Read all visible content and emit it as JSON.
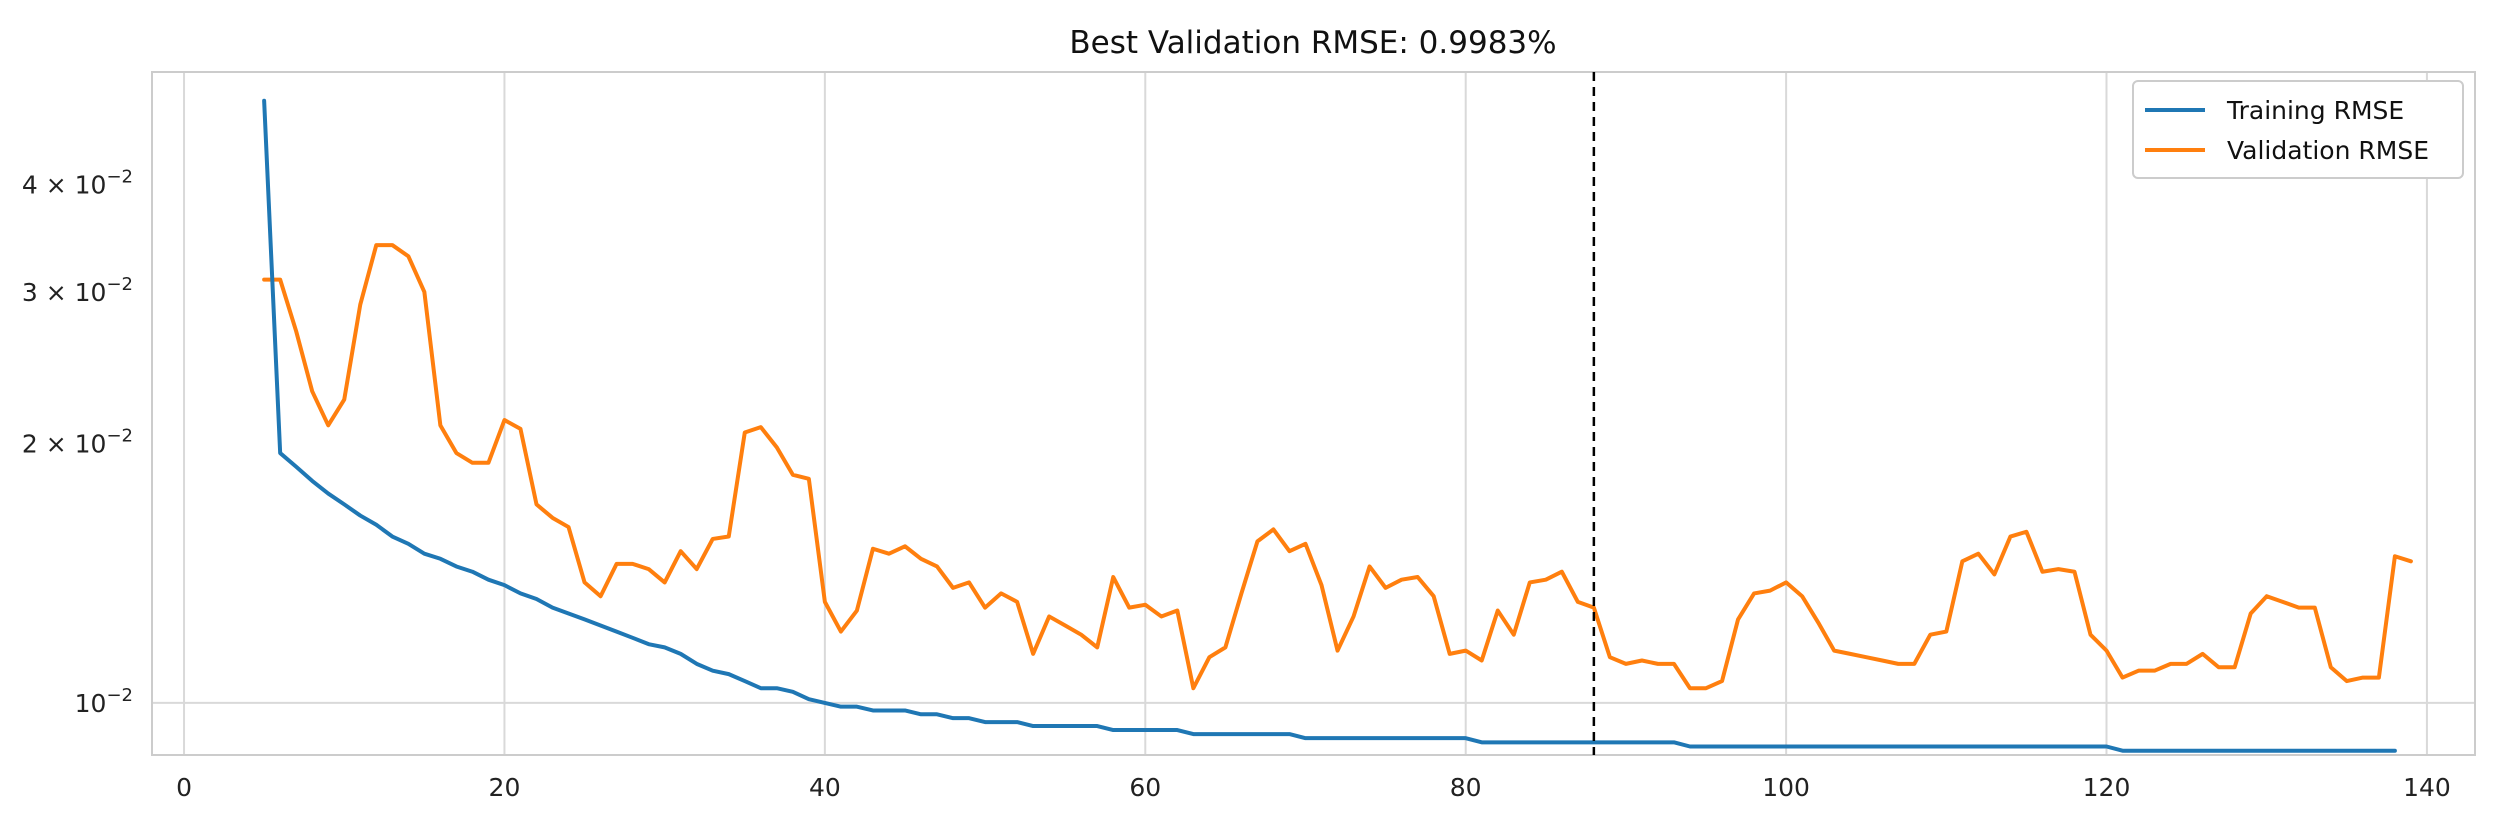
{
  "chart_data": {
    "type": "line",
    "title": "Best Validation RMSE: 0.9983%",
    "xlabel": "",
    "ylabel": "",
    "y_scale": "log",
    "xlim": [
      -2,
      143
    ],
    "ylim": [
      0.0087,
      0.054
    ],
    "x_ticks": [
      {
        "value": 0,
        "label": "0"
      },
      {
        "value": 20,
        "label": "20"
      },
      {
        "value": 40,
        "label": "40"
      },
      {
        "value": 60,
        "label": "60"
      },
      {
        "value": 80,
        "label": "80"
      },
      {
        "value": 100,
        "label": "100"
      },
      {
        "value": 120,
        "label": "120"
      },
      {
        "value": 140,
        "label": "140"
      }
    ],
    "y_ticks": [
      {
        "value": 0.01,
        "base": "10",
        "exp": "−2",
        "prefix": ""
      },
      {
        "value": 0.02,
        "base": "10",
        "exp": "−2",
        "prefix": "2 × "
      },
      {
        "value": 0.03,
        "base": "10",
        "exp": "−2",
        "prefix": "3 × "
      },
      {
        "value": 0.04,
        "base": "10",
        "exp": "−2",
        "prefix": "4 × "
      }
    ],
    "grid": true,
    "legend_position": "top-right",
    "vline": {
      "x": 88,
      "style": "dashed",
      "color": "#000000"
    },
    "colors": {
      "training": "#1f77b4",
      "validation": "#ff7f0e"
    },
    "series": [
      {
        "name": "Training RMSE",
        "x_start": 5,
        "values": [
          0.05,
          0.0195,
          0.0188,
          0.0181,
          0.0175,
          0.017,
          0.0165,
          0.0161,
          0.0156,
          0.0153,
          0.0149,
          0.0147,
          0.0144,
          0.0142,
          0.0139,
          0.0137,
          0.0134,
          0.0132,
          0.0129,
          0.0127,
          0.0125,
          0.0123,
          0.0121,
          0.0119,
          0.0117,
          0.0116,
          0.0114,
          0.0111,
          0.0109,
          0.0108,
          0.0106,
          0.0104,
          0.0104,
          0.0103,
          0.0101,
          0.01,
          0.0099,
          0.0099,
          0.0098,
          0.0098,
          0.0098,
          0.0097,
          0.0097,
          0.0096,
          0.0096,
          0.0095,
          0.0095,
          0.0095,
          0.0094,
          0.0094,
          0.0094,
          0.0094,
          0.0094,
          0.0093,
          0.0093,
          0.0093,
          0.0093,
          0.0093,
          0.0092,
          0.0092,
          0.0092,
          0.0092,
          0.0092,
          0.0092,
          0.0092,
          0.0091,
          0.0091,
          0.0091,
          0.0091,
          0.0091,
          0.0091,
          0.0091,
          0.0091,
          0.0091,
          0.0091,
          0.0091,
          0.009,
          0.009,
          0.009,
          0.009,
          0.009,
          0.009,
          0.009,
          0.009,
          0.009,
          0.009,
          0.009,
          0.009,
          0.009,
          0.0089,
          0.0089,
          0.0089,
          0.0089,
          0.0089,
          0.0089,
          0.0089,
          0.0089,
          0.0089,
          0.0089,
          0.0089,
          0.0089,
          0.0089,
          0.0089,
          0.0089,
          0.0089,
          0.0089,
          0.0089,
          0.0089,
          0.0089,
          0.0089,
          0.0089,
          0.0089,
          0.0089,
          0.0089,
          0.0089,
          0.0089,
          0.0088,
          0.0088,
          0.0088,
          0.0088,
          0.0088,
          0.0088,
          0.0088,
          0.0088,
          0.0088,
          0.0088,
          0.0088,
          0.0088,
          0.0088,
          0.0088,
          0.0088,
          0.0088,
          0.0088,
          0.0088
        ]
      },
      {
        "name": "Validation RMSE",
        "x_start": 5,
        "values": [
          0.031,
          0.031,
          0.027,
          0.023,
          0.021,
          0.0225,
          0.029,
          0.034,
          0.034,
          0.033,
          0.03,
          0.021,
          0.0195,
          0.019,
          0.019,
          0.0213,
          0.0208,
          0.017,
          0.0164,
          0.016,
          0.0138,
          0.0133,
          0.0145,
          0.0145,
          0.0143,
          0.0138,
          0.015,
          0.0143,
          0.0155,
          0.0156,
          0.0206,
          0.0209,
          0.0198,
          0.0184,
          0.0182,
          0.0131,
          0.0121,
          0.0128,
          0.0151,
          0.0149,
          0.0152,
          0.0147,
          0.0144,
          0.0136,
          0.0138,
          0.0129,
          0.0134,
          0.0131,
          0.0114,
          0.0126,
          0.0123,
          0.012,
          0.0116,
          0.014,
          0.0129,
          0.013,
          0.0126,
          0.0128,
          0.0104,
          0.0113,
          0.0116,
          0.0134,
          0.0154,
          0.0159,
          0.015,
          0.0153,
          0.0137,
          0.0115,
          0.0126,
          0.0144,
          0.0136,
          0.0139,
          0.014,
          0.0133,
          0.0114,
          0.0115,
          0.0112,
          0.0128,
          0.012,
          0.0138,
          0.0139,
          0.0142,
          0.0131,
          0.0129,
          0.0113,
          0.0111,
          0.0112,
          0.0111,
          0.0111,
          0.0104,
          0.0104,
          0.0106,
          0.0125,
          0.0134,
          0.0135,
          0.0138,
          0.0133,
          0.0124,
          0.0115,
          0.0114,
          0.0113,
          0.0112,
          0.0111,
          0.0111,
          0.012,
          0.0121,
          0.0146,
          0.0149,
          0.0141,
          0.0156,
          0.0158,
          0.0142,
          0.0143,
          0.0142,
          0.012,
          0.0115,
          0.0107,
          0.0109,
          0.0109,
          0.0111,
          0.0111,
          0.0114,
          0.011,
          0.011,
          0.0127,
          0.0133,
          0.0131,
          0.0129,
          0.0129,
          0.011,
          0.0106,
          0.0107,
          0.0107,
          0.0148,
          0.0146
        ]
      }
    ]
  }
}
